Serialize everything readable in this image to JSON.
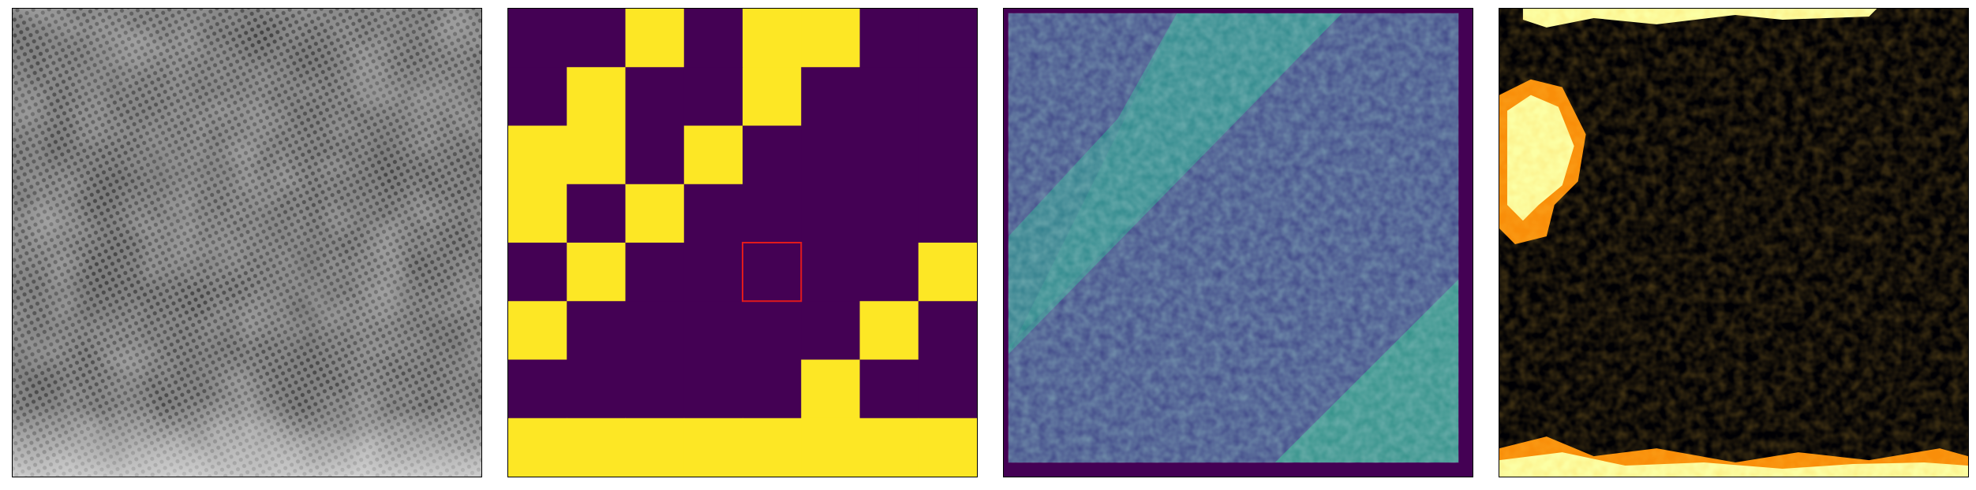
{
  "colors": {
    "viridis_dark": "#440154",
    "viridis_yellow": "#fde725",
    "viridis_teal": "#2a9b8a",
    "viridis_blue": "#3b528b",
    "inferno_black": "#000004",
    "inferno_orange": "#f98e09",
    "inferno_yellow": "#fcffa4",
    "highlight_red": "#e31a1c",
    "border": "#000000",
    "grey_image_base": "#6e6e6e"
  },
  "panels": [
    {
      "name": "grayscale-lattice-image",
      "colormap": "gray"
    },
    {
      "name": "binary-grid-mask",
      "colormap": "viridis"
    },
    {
      "name": "viridis-intensity-map",
      "colormap": "viridis"
    },
    {
      "name": "inferno-intensity-map",
      "colormap": "inferno"
    }
  ],
  "grid_mask": {
    "rows": 8,
    "cols": 8,
    "cells": [
      [
        0,
        0,
        1,
        0,
        1,
        1,
        0,
        0
      ],
      [
        0,
        1,
        0,
        0,
        1,
        0,
        0,
        0
      ],
      [
        1,
        1,
        0,
        1,
        0,
        0,
        0,
        0
      ],
      [
        1,
        0,
        1,
        0,
        0,
        0,
        0,
        0
      ],
      [
        0,
        1,
        0,
        0,
        0,
        0,
        0,
        1
      ],
      [
        1,
        0,
        0,
        0,
        0,
        0,
        1,
        0
      ],
      [
        0,
        0,
        0,
        0,
        0,
        1,
        0,
        0
      ],
      [
        1,
        1,
        1,
        1,
        1,
        1,
        1,
        1
      ]
    ],
    "highlighted_cell": {
      "row": 4,
      "col": 4
    }
  }
}
